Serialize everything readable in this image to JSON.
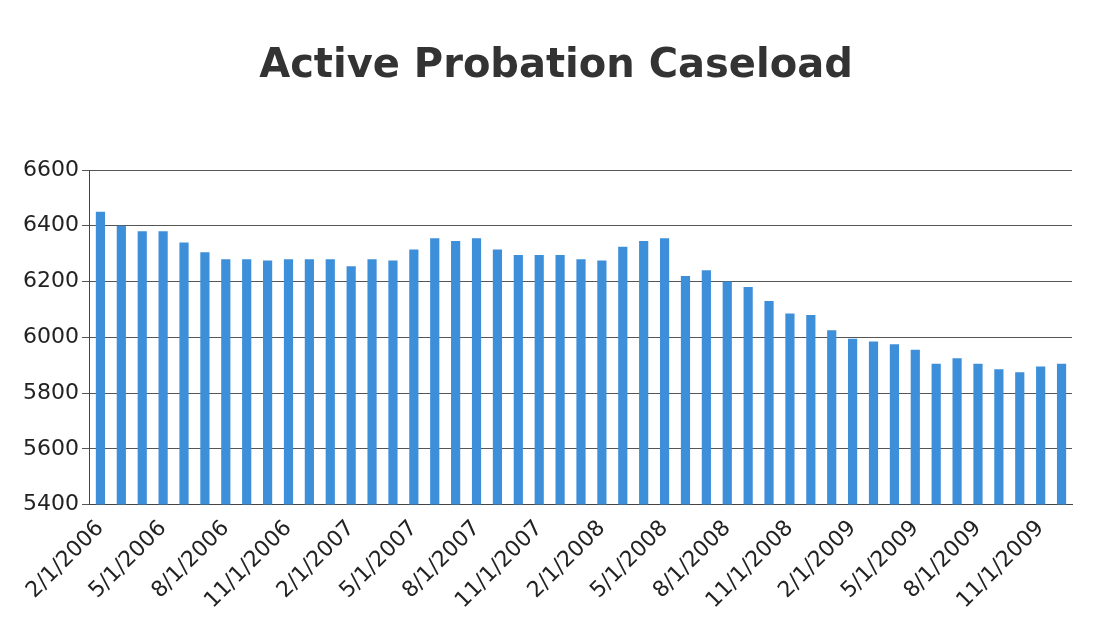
{
  "chart_data": {
    "type": "bar",
    "title": "Active Probation Caseload",
    "categories": [
      "2/1/2006",
      null,
      null,
      "5/1/2006",
      null,
      null,
      "8/1/2006",
      null,
      null,
      "11/1/2006",
      null,
      null,
      "2/1/2007",
      null,
      null,
      "5/1/2007",
      null,
      null,
      "8/1/2007",
      null,
      null,
      "11/1/2007",
      null,
      null,
      "2/1/2008",
      null,
      null,
      "5/1/2008",
      null,
      null,
      "8/1/2008",
      null,
      null,
      "11/1/2008",
      null,
      null,
      "2/1/2009",
      null,
      null,
      "5/1/2009",
      null,
      null,
      "8/1/2009",
      null,
      null,
      "11/1/2009",
      null
    ],
    "values": [
      6450,
      6400,
      6380,
      6380,
      6340,
      6305,
      6280,
      6280,
      6275,
      6280,
      6280,
      6280,
      6255,
      6280,
      6275,
      6315,
      6355,
      6345,
      6355,
      6315,
      6295,
      6295,
      6295,
      6280,
      6275,
      6325,
      6345,
      6355,
      6220,
      6240,
      6200,
      6180,
      6130,
      6085,
      6080,
      6025,
      5995,
      5985,
      5975,
      5955,
      5905,
      5925,
      5905,
      5885,
      5875,
      5895,
      5905
    ],
    "color": "#3d8fd9",
    "ylim": [
      5400,
      6600
    ],
    "yticks": [
      5400,
      5600,
      5800,
      6000,
      6200,
      6400,
      6600
    ],
    "grid": "y",
    "legend": false
  }
}
